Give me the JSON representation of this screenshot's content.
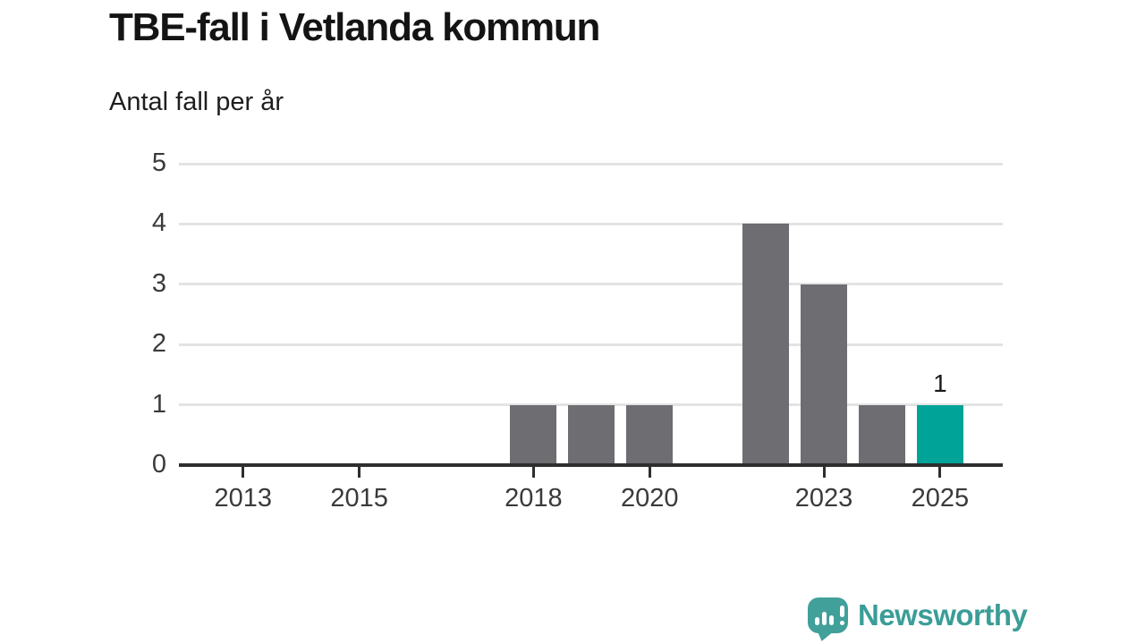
{
  "header": {
    "title": "TBE-fall i Vetlanda kommun",
    "subtitle": "Antal fall per år"
  },
  "chart_data": {
    "type": "bar",
    "title": "TBE-fall i Vetlanda kommun",
    "subtitle": "Antal fall per år",
    "ylabel": "Antal fall per år",
    "xlabel": "",
    "categories": [
      "2012",
      "2013",
      "2014",
      "2015",
      "2016",
      "2017",
      "2018",
      "2019",
      "2020",
      "2021",
      "2022",
      "2023",
      "2024",
      "2025"
    ],
    "values": [
      0,
      0,
      0,
      0,
      0,
      0,
      1,
      1,
      1,
      0,
      4,
      3,
      1,
      1
    ],
    "highlight_index": 13,
    "data_labels": [
      {
        "index": 13,
        "text": "1"
      }
    ],
    "ylim": [
      0,
      5
    ],
    "yticks": [
      "0",
      "1",
      "2",
      "3",
      "4",
      "5"
    ],
    "xtick_labels": [
      "2013",
      "2015",
      "2018",
      "2020",
      "2023",
      "2025"
    ],
    "grid": "horizontal",
    "legend": "none",
    "colors": {
      "bar": "#6d6d72",
      "highlight": "#00a398",
      "gridline": "#e3e3e3",
      "axis": "#2e2e2e",
      "tick_text": "#3a3a3a"
    }
  },
  "footer": {
    "brand": "Newsworthy",
    "brand_icon": "bar-chart-speech-bubble-icon",
    "brand_icon_color": "#42a09b",
    "brand_text_color": "#3a9d97"
  }
}
